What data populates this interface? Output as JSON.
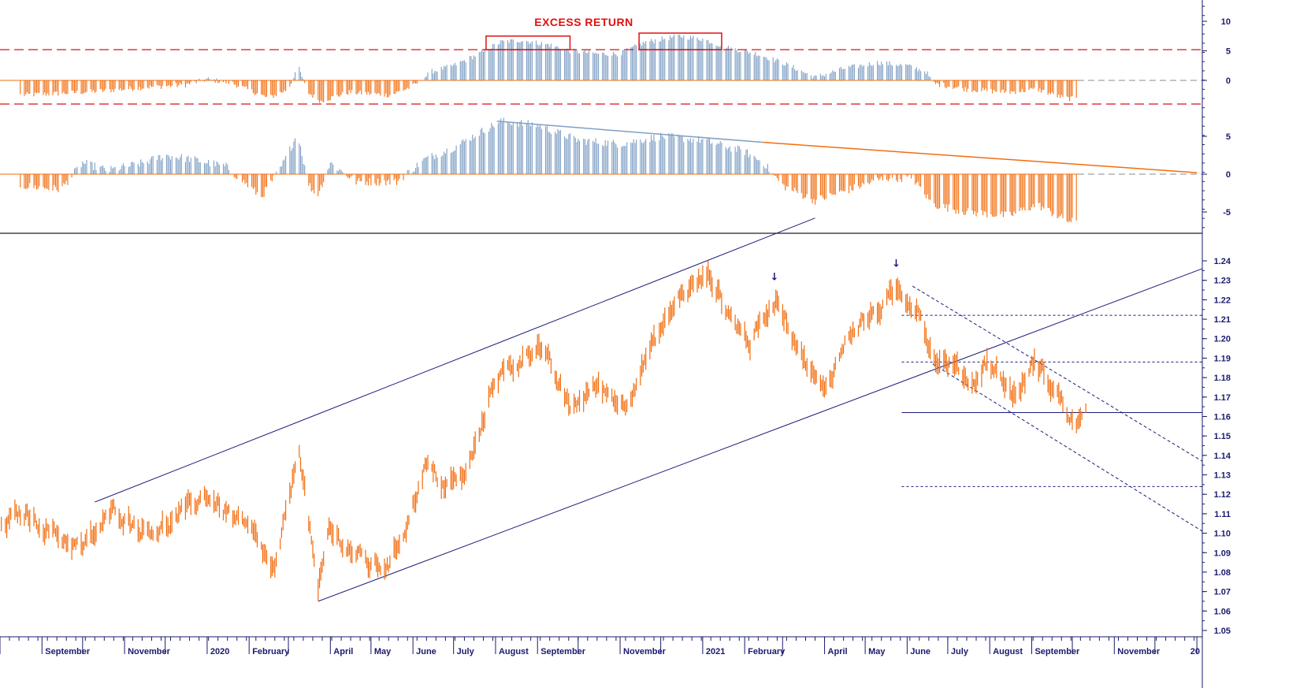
{
  "colors": {
    "up": "#7f9fc4",
    "down": "#f26d0f",
    "price": "#f26d0f",
    "channel": "#1a1a7a",
    "axis_text": "#1a1a6e",
    "threshold": "#e01010",
    "trend_blue": "#7f9fc4",
    "trend_orange": "#f26d0f"
  },
  "chart_data": [
    {
      "type": "bar",
      "panel": "excess-return",
      "title": "EXCESS RETURN",
      "y_ticks": [
        "10",
        "5",
        "0"
      ],
      "ylim": [
        -4,
        12
      ],
      "thresholds": [
        5.2,
        -4
      ],
      "highlight_boxes": [
        {
          "x0": "2020-07-25",
          "x1": "2020-09-25",
          "y0": 5.2,
          "y1": 7.5
        },
        {
          "x0": "2020-11-15",
          "x1": "2021-01-15",
          "y0": 5.2,
          "y1": 8.0
        }
      ],
      "keypoints": [
        {
          "date": "2019-08-15",
          "v": -2.5
        },
        {
          "date": "2019-09-15",
          "v": -2.2
        },
        {
          "date": "2019-10-15",
          "v": -1.8
        },
        {
          "date": "2019-11-15",
          "v": -1.2
        },
        {
          "date": "2019-12-15",
          "v": -0.8
        },
        {
          "date": "2020-01-01",
          "v": 0.2
        },
        {
          "date": "2020-01-20",
          "v": -0.5
        },
        {
          "date": "2020-02-15",
          "v": -3.0
        },
        {
          "date": "2020-03-01",
          "v": -1.5
        },
        {
          "date": "2020-03-08",
          "v": 2.5
        },
        {
          "date": "2020-03-15",
          "v": -2.0
        },
        {
          "date": "2020-03-25",
          "v": -3.5
        },
        {
          "date": "2020-04-15",
          "v": -2.0
        },
        {
          "date": "2020-05-15",
          "v": -2.5
        },
        {
          "date": "2020-06-01",
          "v": -1.0
        },
        {
          "date": "2020-06-15",
          "v": 1.5
        },
        {
          "date": "2020-07-01",
          "v": 2.5
        },
        {
          "date": "2020-07-20",
          "v": 4.5
        },
        {
          "date": "2020-08-05",
          "v": 6.5
        },
        {
          "date": "2020-08-20",
          "v": 6.8
        },
        {
          "date": "2020-09-10",
          "v": 6.0
        },
        {
          "date": "2020-09-25",
          "v": 5.0
        },
        {
          "date": "2020-10-15",
          "v": 4.5
        },
        {
          "date": "2020-11-01",
          "v": 4.5
        },
        {
          "date": "2020-11-20",
          "v": 6.5
        },
        {
          "date": "2020-12-15",
          "v": 7.5
        },
        {
          "date": "2021-01-01",
          "v": 7.0
        },
        {
          "date": "2021-01-20",
          "v": 5.5
        },
        {
          "date": "2021-02-10",
          "v": 4.5
        },
        {
          "date": "2021-03-01",
          "v": 3.0
        },
        {
          "date": "2021-03-25",
          "v": 0.5
        },
        {
          "date": "2021-04-15",
          "v": 2.0
        },
        {
          "date": "2021-05-10",
          "v": 3.0
        },
        {
          "date": "2021-06-01",
          "v": 2.5
        },
        {
          "date": "2021-06-15",
          "v": 1.5
        },
        {
          "date": "2021-06-20",
          "v": -0.5
        },
        {
          "date": "2021-07-15",
          "v": -1.5
        },
        {
          "date": "2021-08-15",
          "v": -2.0
        },
        {
          "date": "2021-09-05",
          "v": -1.5
        },
        {
          "date": "2021-09-25",
          "v": -3.0
        },
        {
          "date": "2021-10-05",
          "v": -3.2
        }
      ]
    },
    {
      "type": "bar",
      "panel": "momentum",
      "y_ticks": [
        "5",
        "0",
        "-5"
      ],
      "ylim": [
        -8,
        8
      ],
      "trend_lines": [
        {
          "color": "trend_blue",
          "from": {
            "date": "2020-08-02",
            "v": 7.0
          },
          "to": {
            "date": "2021-02-15",
            "v": 4.2
          }
        },
        {
          "color": "trend_orange",
          "from": {
            "date": "2021-02-15",
            "v": 4.2
          },
          "to": {
            "date": "2022-01-01",
            "v": 0.2
          }
        }
      ],
      "keypoints": [
        {
          "date": "2019-08-15",
          "v": -1.5
        },
        {
          "date": "2019-09-15",
          "v": -2.0
        },
        {
          "date": "2019-10-01",
          "v": 1.5
        },
        {
          "date": "2019-10-20",
          "v": 0.5
        },
        {
          "date": "2019-11-15",
          "v": 1.5
        },
        {
          "date": "2019-12-01",
          "v": 2.5
        },
        {
          "date": "2019-12-20",
          "v": 2.0
        },
        {
          "date": "2020-01-15",
          "v": 1.0
        },
        {
          "date": "2020-02-10",
          "v": -3.0
        },
        {
          "date": "2020-02-25",
          "v": 1.0
        },
        {
          "date": "2020-03-08",
          "v": 5.5
        },
        {
          "date": "2020-03-15",
          "v": -1.0
        },
        {
          "date": "2020-03-22",
          "v": -3.0
        },
        {
          "date": "2020-04-01",
          "v": 1.5
        },
        {
          "date": "2020-04-20",
          "v": -1.0
        },
        {
          "date": "2020-05-20",
          "v": -1.0
        },
        {
          "date": "2020-06-10",
          "v": 2.0
        },
        {
          "date": "2020-07-01",
          "v": 3.5
        },
        {
          "date": "2020-07-20",
          "v": 5.5
        },
        {
          "date": "2020-08-05",
          "v": 7.0
        },
        {
          "date": "2020-09-01",
          "v": 6.5
        },
        {
          "date": "2020-10-01",
          "v": 4.5
        },
        {
          "date": "2020-11-01",
          "v": 4.0
        },
        {
          "date": "2020-12-01",
          "v": 5.0
        },
        {
          "date": "2021-01-01",
          "v": 4.5
        },
        {
          "date": "2021-02-01",
          "v": 3.0
        },
        {
          "date": "2021-02-15",
          "v": 1.5
        },
        {
          "date": "2021-03-01",
          "v": -1.5
        },
        {
          "date": "2021-03-25",
          "v": -3.5
        },
        {
          "date": "2021-04-20",
          "v": -2.0
        },
        {
          "date": "2021-05-15",
          "v": -0.5
        },
        {
          "date": "2021-06-05",
          "v": -0.5
        },
        {
          "date": "2021-06-20",
          "v": -4.0
        },
        {
          "date": "2021-07-15",
          "v": -5.0
        },
        {
          "date": "2021-08-15",
          "v": -5.5
        },
        {
          "date": "2021-09-05",
          "v": -4.0
        },
        {
          "date": "2021-09-25",
          "v": -6.0
        },
        {
          "date": "2021-10-05",
          "v": -6.5
        }
      ]
    },
    {
      "type": "line",
      "panel": "price",
      "y_ticks": [
        "1.24",
        "1.23",
        "1.22",
        "1.21",
        "1.20",
        "1.19",
        "1.18",
        "1.17",
        "1.16",
        "1.15",
        "1.14",
        "1.13",
        "1.12",
        "1.11",
        "1.10",
        "1.09",
        "1.08",
        "1.07",
        "1.06",
        "1.05"
      ],
      "ylim": [
        1.05,
        1.24
      ],
      "x_labels": [
        "September",
        "November",
        "2020",
        "February",
        "April",
        "May",
        "June",
        "July",
        "August",
        "September",
        "November",
        "2021",
        "February",
        "April",
        "May",
        "June",
        "July",
        "August",
        "September",
        "November",
        "20"
      ],
      "series": [
        {
          "keypoints": [
            {
              "date": "2019-08-01",
              "v": 1.105
            },
            {
              "date": "2019-08-20",
              "v": 1.11
            },
            {
              "date": "2019-09-15",
              "v": 1.098
            },
            {
              "date": "2019-10-01",
              "v": 1.092
            },
            {
              "date": "2019-10-25",
              "v": 1.112
            },
            {
              "date": "2019-11-15",
              "v": 1.102
            },
            {
              "date": "2019-12-01",
              "v": 1.103
            },
            {
              "date": "2019-12-31",
              "v": 1.12
            },
            {
              "date": "2020-01-20",
              "v": 1.108
            },
            {
              "date": "2020-02-05",
              "v": 1.098
            },
            {
              "date": "2020-02-20",
              "v": 1.079
            },
            {
              "date": "2020-03-09",
              "v": 1.145
            },
            {
              "date": "2020-03-15",
              "v": 1.112
            },
            {
              "date": "2020-03-23",
              "v": 1.068
            },
            {
              "date": "2020-03-31",
              "v": 1.102
            },
            {
              "date": "2020-04-15",
              "v": 1.092
            },
            {
              "date": "2020-05-01",
              "v": 1.083
            },
            {
              "date": "2020-05-15",
              "v": 1.084
            },
            {
              "date": "2020-05-30",
              "v": 1.11
            },
            {
              "date": "2020-06-10",
              "v": 1.135
            },
            {
              "date": "2020-06-25",
              "v": 1.124
            },
            {
              "date": "2020-07-10",
              "v": 1.13
            },
            {
              "date": "2020-07-20",
              "v": 1.15
            },
            {
              "date": "2020-07-31",
              "v": 1.18
            },
            {
              "date": "2020-08-15",
              "v": 1.186
            },
            {
              "date": "2020-09-01",
              "v": 1.198
            },
            {
              "date": "2020-09-25",
              "v": 1.164
            },
            {
              "date": "2020-10-15",
              "v": 1.176
            },
            {
              "date": "2020-11-04",
              "v": 1.166
            },
            {
              "date": "2020-11-20",
              "v": 1.19
            },
            {
              "date": "2020-12-15",
              "v": 1.222
            },
            {
              "date": "2021-01-06",
              "v": 1.233
            },
            {
              "date": "2021-01-20",
              "v": 1.213
            },
            {
              "date": "2021-02-05",
              "v": 1.198
            },
            {
              "date": "2021-02-25",
              "v": 1.222
            },
            {
              "date": "2021-03-15",
              "v": 1.192
            },
            {
              "date": "2021-03-31",
              "v": 1.172
            },
            {
              "date": "2021-04-20",
              "v": 1.204
            },
            {
              "date": "2021-05-10",
              "v": 1.214
            },
            {
              "date": "2021-05-25",
              "v": 1.224
            },
            {
              "date": "2021-06-10",
              "v": 1.216
            },
            {
              "date": "2021-06-20",
              "v": 1.19
            },
            {
              "date": "2021-07-05",
              "v": 1.186
            },
            {
              "date": "2021-07-20",
              "v": 1.177
            },
            {
              "date": "2021-07-30",
              "v": 1.189
            },
            {
              "date": "2021-08-20",
              "v": 1.17
            },
            {
              "date": "2021-09-03",
              "v": 1.188
            },
            {
              "date": "2021-09-20",
              "v": 1.172
            },
            {
              "date": "2021-09-30",
              "v": 1.158
            },
            {
              "date": "2021-10-08",
              "v": 1.157
            },
            {
              "date": "2021-10-12",
              "v": 1.16
            }
          ]
        }
      ],
      "lines": [
        {
          "style": "solid",
          "from": {
            "date": "2019-10-10",
            "v": 1.116
          },
          "to": {
            "date": "2021-03-25",
            "v": 1.262
          }
        },
        {
          "style": "solid",
          "from": {
            "date": "2020-03-23",
            "v": 1.065
          },
          "to": {
            "date": "2022-01-05",
            "v": 1.236
          }
        },
        {
          "style": "dashed",
          "from": {
            "date": "2021-06-05",
            "v": 1.227
          },
          "to": {
            "date": "2022-01-05",
            "v": 1.137
          }
        },
        {
          "style": "dashed",
          "from": {
            "date": "2021-06-20",
            "v": 1.187
          },
          "to": {
            "date": "2022-01-05",
            "v": 1.101
          }
        }
      ],
      "levels": [
        {
          "style": "dashed",
          "v": 1.212,
          "from": "2021-05-28"
        },
        {
          "style": "dashed",
          "v": 1.188,
          "from": "2021-05-28"
        },
        {
          "style": "solid",
          "v": 1.162,
          "from": "2021-05-28"
        },
        {
          "style": "dashed",
          "v": 1.124,
          "from": "2021-05-28"
        }
      ],
      "markers": [
        {
          "symbol": "↓",
          "date": "2021-02-23",
          "v": 1.23
        },
        {
          "symbol": "↓",
          "date": "2021-05-24",
          "v": 1.237
        }
      ]
    }
  ]
}
